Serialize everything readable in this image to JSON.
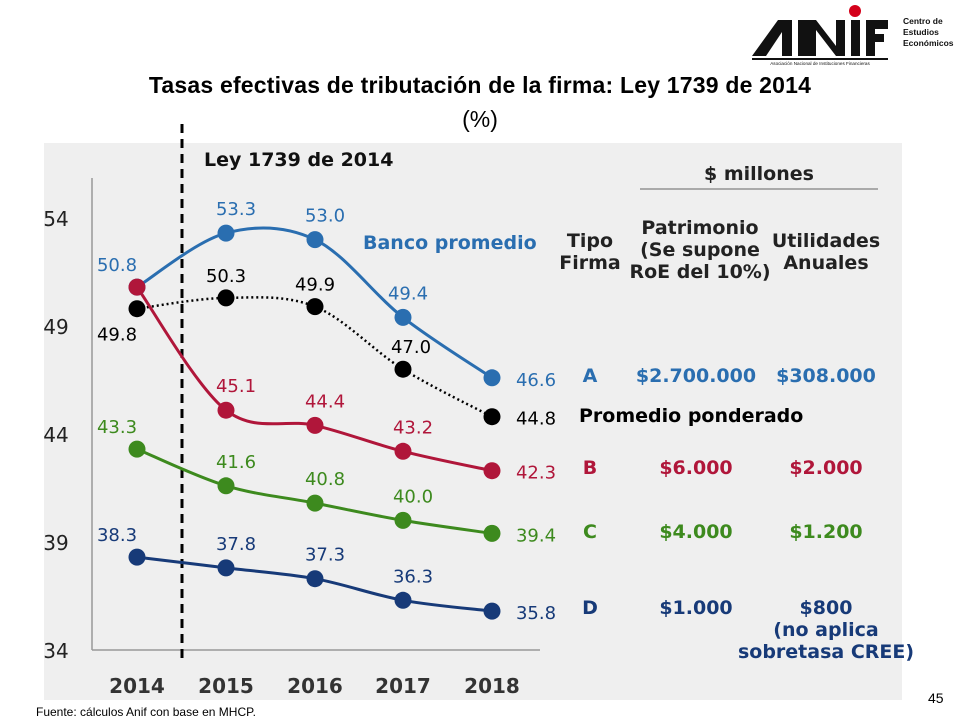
{
  "header": {
    "logo_text": "ANIF",
    "logo_tagline": "Asociación Nacional de Instituciones Financieras",
    "logo_side": [
      "Centro de",
      "Estudios",
      "Económicos"
    ]
  },
  "title": "Tasas efectivas de tributación de la firma: Ley 1739 de 2014",
  "subtitle": "(%)",
  "source": "Fuente: cálculos Anif con base en MHCP.",
  "page_number": "45",
  "chart_data": {
    "type": "line",
    "title": "Tasas efectivas de tributación de la firma: Ley 1739 de 2014",
    "unit": "%",
    "categories": [
      "2014",
      "2015",
      "2016",
      "2017",
      "2018"
    ],
    "ylim": [
      34,
      55
    ],
    "yticks": [
      54,
      49,
      44,
      39,
      34
    ],
    "law_marker_label": "Ley 1739 de 2014",
    "series": [
      {
        "name": "Banco promedio",
        "color": "#2a6eb0",
        "dashed": false,
        "values": [
          50.8,
          53.3,
          53.0,
          49.4,
          46.6
        ],
        "labels": [
          "50.8",
          "53.3",
          "53.0",
          "49.4",
          "46.6"
        ]
      },
      {
        "name": "Promedio ponderado",
        "color": "#000000",
        "dashed": true,
        "values": [
          49.8,
          50.3,
          49.9,
          47.0,
          44.8
        ],
        "labels": [
          "49.8",
          "50.3",
          "49.9",
          "47.0",
          "44.8"
        ]
      },
      {
        "name": "B",
        "color": "#b0163a",
        "dashed": false,
        "values": [
          50.8,
          45.1,
          44.4,
          43.2,
          42.3
        ],
        "labels": [
          "",
          "45.1",
          "44.4",
          "43.2",
          "42.3"
        ]
      },
      {
        "name": "C",
        "color": "#3d8a1e",
        "dashed": false,
        "values": [
          43.3,
          41.6,
          40.8,
          40.0,
          39.4
        ],
        "labels": [
          "43.3",
          "41.6",
          "40.8",
          "40.0",
          "39.4"
        ]
      },
      {
        "name": "D",
        "color": "#173a78",
        "dashed": false,
        "values": [
          38.3,
          37.8,
          37.3,
          36.3,
          35.8
        ],
        "labels": [
          "38.3",
          "37.8",
          "37.3",
          "36.3",
          "35.8"
        ]
      }
    ],
    "series_label": "Banco promedio",
    "table": {
      "group_header": "$ millones",
      "headers": {
        "tipo": [
          "Tipo",
          "Firma"
        ],
        "patrimonio": [
          "Patrimonio",
          "(Se supone",
          "RoE del 10%)"
        ],
        "utilidades": [
          "Utilidades",
          "Anuales"
        ]
      },
      "rows": [
        {
          "tipo": "A",
          "patrimonio": "$2.700.000",
          "utilidades": [
            "$308.000"
          ],
          "color": "#2a6eb0"
        },
        {
          "tipo": "Promedio ponderado",
          "patrimonio": "",
          "utilidades": [],
          "color": "#000000"
        },
        {
          "tipo": "B",
          "patrimonio": "$6.000",
          "utilidades": [
            "$2.000"
          ],
          "color": "#b0163a"
        },
        {
          "tipo": "C",
          "patrimonio": "$4.000",
          "utilidades": [
            "$1.200"
          ],
          "color": "#3d8a1e"
        },
        {
          "tipo": "D",
          "patrimonio": "$1.000",
          "utilidades": [
            "$800",
            "(no aplica",
            "sobretasa CREE)"
          ],
          "color": "#173a78"
        }
      ]
    }
  }
}
